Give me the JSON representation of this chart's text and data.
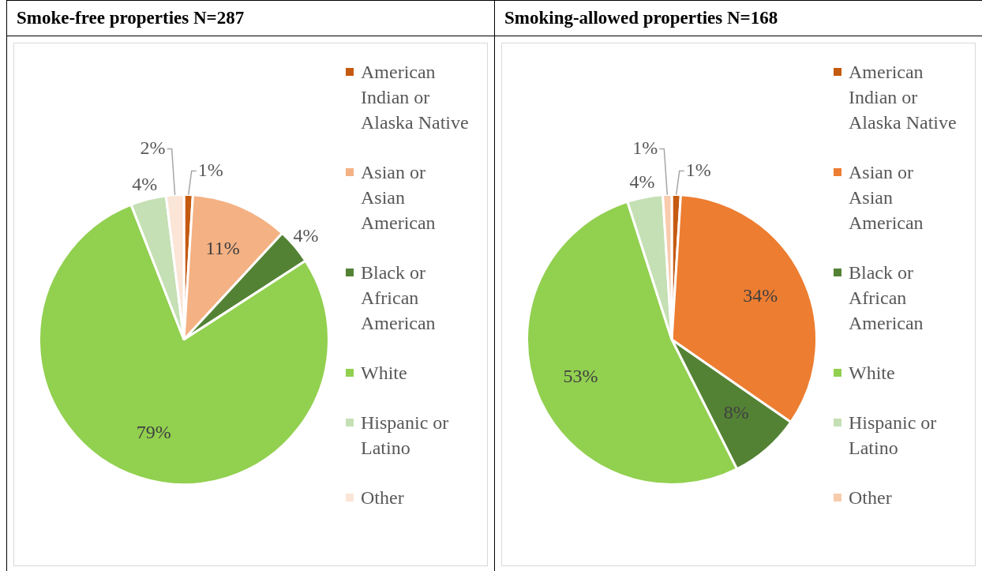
{
  "chart_data": [
    {
      "type": "pie",
      "title": "Smoke-free properties N=287",
      "categories": [
        "American Indian or Alaska Native",
        "Asian or Asian American",
        "Black or African American",
        "White",
        "Hispanic or Latino",
        "Other"
      ],
      "values": [
        1,
        11,
        4,
        79,
        4,
        2
      ],
      "colors": [
        "#c55a11",
        "#f4b183",
        "#548235",
        "#92d050",
        "#c5e0b4",
        "#fbe5d6"
      ],
      "value_labels": [
        "1%",
        "11%",
        "4%",
        "79%",
        "4%",
        "2%"
      ],
      "legend": "right"
    },
    {
      "type": "pie",
      "title": "Smoking-allowed properties N=168",
      "categories": [
        "American Indian or Alaska Native",
        "Asian or Asian American",
        "Black or African American",
        "White",
        "Hispanic or Latino",
        "Other"
      ],
      "values": [
        1,
        34,
        8,
        53,
        4,
        1
      ],
      "colors": [
        "#c55a11",
        "#ed7d31",
        "#548235",
        "#92d050",
        "#c5e0b4",
        "#f8cbad"
      ],
      "value_labels": [
        "1%",
        "34%",
        "8%",
        "53%",
        "4%",
        "1%"
      ],
      "legend": "right"
    }
  ]
}
